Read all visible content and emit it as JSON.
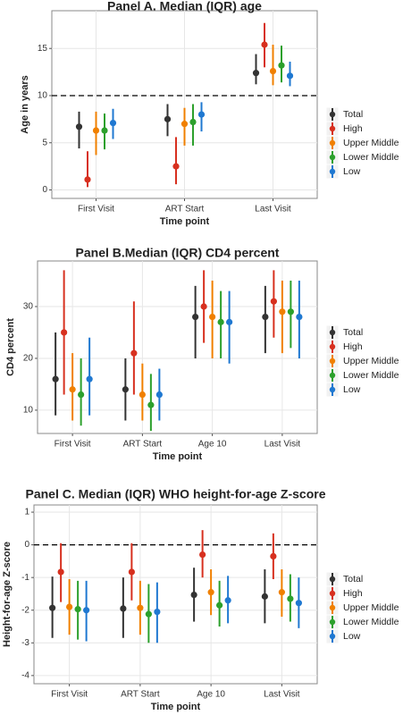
{
  "chart_data": [
    {
      "type": "pointrange",
      "title": "Panel A. Median (IQR) age",
      "x_label": "Time point",
      "y_label": "Age in years",
      "categories": [
        "First Visit",
        "ART Start",
        "Last Visit"
      ],
      "ylim": [
        -0.9,
        19
      ],
      "yticks": [
        0,
        5,
        10,
        15
      ],
      "hline": 10,
      "grid": true,
      "series": [
        {
          "name": "Total",
          "color": "#333333",
          "values": [
            6.7,
            7.5,
            12.4
          ],
          "lower": [
            4.4,
            5.7,
            11.2
          ],
          "upper": [
            8.3,
            9.1,
            14.4
          ]
        },
        {
          "name": "High",
          "color": "#d7301f",
          "values": [
            1.1,
            2.5,
            15.4
          ],
          "lower": [
            0.3,
            0.6,
            13.0
          ],
          "upper": [
            4.1,
            5.6,
            17.7
          ]
        },
        {
          "name": "Upper Middle",
          "color": "#f08000",
          "values": [
            6.3,
            7.0,
            12.6
          ],
          "lower": [
            3.7,
            4.7,
            11.1
          ],
          "upper": [
            8.3,
            8.7,
            15.4
          ]
        },
        {
          "name": "Lower Middle",
          "color": "#2ca02c",
          "values": [
            6.3,
            7.2,
            13.2
          ],
          "lower": [
            4.3,
            4.7,
            11.4
          ],
          "upper": [
            8.1,
            9.1,
            15.3
          ]
        },
        {
          "name": "Low",
          "color": "#1f78d1",
          "values": [
            7.1,
            8.0,
            12.1
          ],
          "lower": [
            5.4,
            6.2,
            11.0
          ],
          "upper": [
            8.6,
            9.3,
            13.6
          ]
        }
      ]
    },
    {
      "type": "pointrange",
      "title": "Panel B.Median (IQR) CD4 percent",
      "x_label": "Time point",
      "y_label": "CD4 percent",
      "categories": [
        "First Visit",
        "ART Start",
        "Age 10",
        "Last Visit"
      ],
      "ylim": [
        5.5,
        38.8
      ],
      "yticks": [
        10,
        20,
        30
      ],
      "grid": true,
      "series": [
        {
          "name": "Total",
          "color": "#333333",
          "values": [
            16,
            14,
            28,
            28
          ],
          "lower": [
            9,
            8,
            20,
            21
          ],
          "upper": [
            25,
            20,
            34,
            34
          ]
        },
        {
          "name": "High",
          "color": "#d7301f",
          "values": [
            25,
            21,
            30,
            31
          ],
          "lower": [
            13,
            13,
            23,
            24
          ],
          "upper": [
            37,
            31,
            37,
            37
          ]
        },
        {
          "name": "Upper Middle",
          "color": "#f08000",
          "values": [
            14,
            13,
            28,
            29
          ],
          "lower": [
            8,
            8,
            20,
            21
          ],
          "upper": [
            21,
            19,
            35,
            35
          ]
        },
        {
          "name": "Lower Middle",
          "color": "#2ca02c",
          "values": [
            13,
            11,
            27,
            29
          ],
          "lower": [
            7,
            6,
            20,
            22
          ],
          "upper": [
            20,
            17,
            33,
            35
          ]
        },
        {
          "name": "Low",
          "color": "#1f78d1",
          "values": [
            16,
            13,
            27,
            28
          ],
          "lower": [
            9,
            8,
            19,
            20
          ],
          "upper": [
            24,
            18,
            33,
            35
          ]
        }
      ]
    },
    {
      "type": "pointrange",
      "title": "Panel C. Median (IQR) WHO height-for-age Z-score",
      "x_label": "Time point",
      "y_label": "Height-for-age Z-score",
      "categories": [
        "First Visit",
        "ART Start",
        "Age 10",
        "Last Visit"
      ],
      "ylim": [
        -4.25,
        1.22
      ],
      "yticks": [
        1,
        0,
        -1,
        -2,
        -3,
        -4
      ],
      "hline": 0,
      "grid": true,
      "series": [
        {
          "name": "Total",
          "color": "#333333",
          "values": [
            -1.93,
            -1.95,
            -1.53,
            -1.58
          ],
          "lower": [
            -2.85,
            -2.85,
            -2.35,
            -2.4
          ],
          "upper": [
            -0.97,
            -1.0,
            -0.7,
            -0.75
          ]
        },
        {
          "name": "High",
          "color": "#d7301f",
          "values": [
            -0.83,
            -0.83,
            -0.3,
            -0.35
          ],
          "lower": [
            -1.75,
            -1.7,
            -1.0,
            -1.05
          ],
          "upper": [
            0.05,
            0.05,
            0.45,
            0.35
          ]
        },
        {
          "name": "Upper Middle",
          "color": "#f08000",
          "values": [
            -1.9,
            -1.93,
            -1.45,
            -1.45
          ],
          "lower": [
            -2.75,
            -2.75,
            -2.15,
            -2.2
          ],
          "upper": [
            -1.05,
            -1.1,
            -0.75,
            -0.75
          ]
        },
        {
          "name": "Lower Middle",
          "color": "#2ca02c",
          "values": [
            -1.97,
            -2.12,
            -1.85,
            -1.65
          ],
          "lower": [
            -2.9,
            -3.0,
            -2.5,
            -2.35
          ],
          "upper": [
            -1.1,
            -1.2,
            -1.1,
            -0.9
          ]
        },
        {
          "name": "Low",
          "color": "#1f78d1",
          "values": [
            -2.0,
            -2.05,
            -1.7,
            -1.78
          ],
          "lower": [
            -2.95,
            -3.0,
            -2.4,
            -2.55
          ],
          "upper": [
            -1.1,
            -1.15,
            -0.95,
            -1.0
          ]
        }
      ]
    }
  ]
}
